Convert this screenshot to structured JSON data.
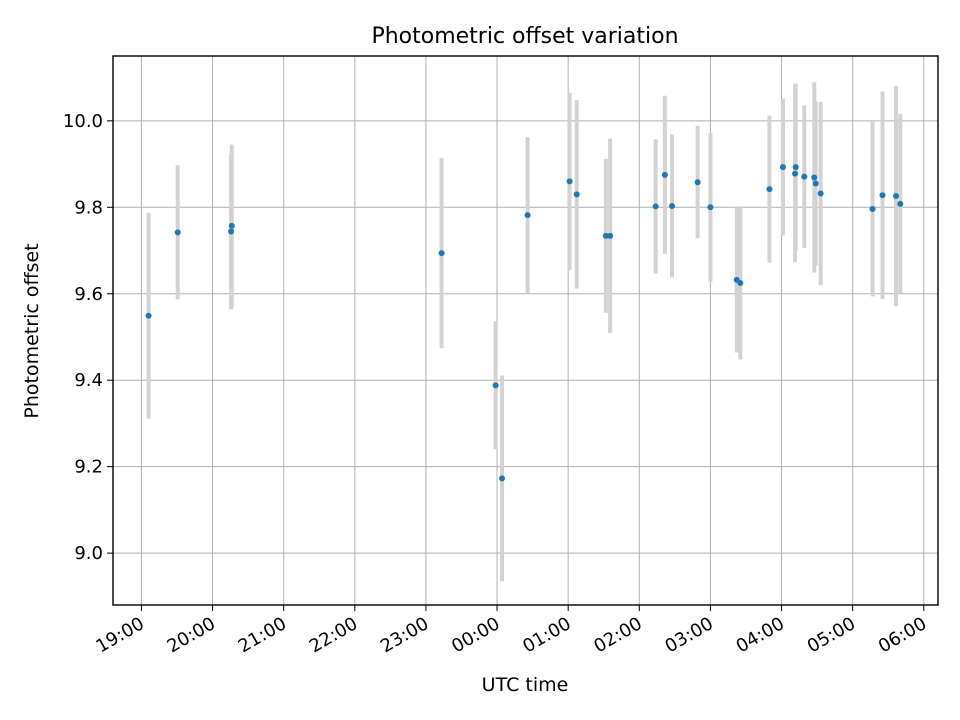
{
  "chart_data": {
    "type": "scatter",
    "title": "Photometric offset variation",
    "xlabel": "UTC time",
    "ylabel": "Photometric offset",
    "x_unit": "hours (UTC, continuous from 19:00 through midnight)",
    "xlim": [
      18.6,
      30.2
    ],
    "ylim": [
      8.88,
      10.15
    ],
    "x_ticks": [
      {
        "value": 19,
        "label": "19:00"
      },
      {
        "value": 20,
        "label": "20:00"
      },
      {
        "value": 21,
        "label": "21:00"
      },
      {
        "value": 22,
        "label": "22:00"
      },
      {
        "value": 23,
        "label": "23:00"
      },
      {
        "value": 24,
        "label": "00:00"
      },
      {
        "value": 25,
        "label": "01:00"
      },
      {
        "value": 26,
        "label": "02:00"
      },
      {
        "value": 27,
        "label": "03:00"
      },
      {
        "value": 28,
        "label": "04:00"
      },
      {
        "value": 29,
        "label": "05:00"
      },
      {
        "value": 30,
        "label": "06:00"
      }
    ],
    "y_ticks": [
      {
        "value": 9.0,
        "label": "9.0"
      },
      {
        "value": 9.2,
        "label": "9.2"
      },
      {
        "value": 9.4,
        "label": "9.4"
      },
      {
        "value": 9.6,
        "label": "9.6"
      },
      {
        "value": 9.8,
        "label": "9.8"
      },
      {
        "value": 10.0,
        "label": "10.0"
      }
    ],
    "grid": true,
    "point_color": "#1f77b4",
    "errorbar_color": "#d3d3d3",
    "points": [
      {
        "x": 19.1,
        "y": 9.549,
        "err": 0.238
      },
      {
        "x": 19.51,
        "y": 9.742,
        "err": 0.155
      },
      {
        "x": 20.26,
        "y": 9.744,
        "err": 0.18
      },
      {
        "x": 20.27,
        "y": 9.757,
        "err": 0.188
      },
      {
        "x": 23.22,
        "y": 9.694,
        "err": 0.22
      },
      {
        "x": 23.98,
        "y": 9.388,
        "err": 0.148
      },
      {
        "x": 24.07,
        "y": 9.173,
        "err": 0.238
      },
      {
        "x": 24.43,
        "y": 9.782,
        "err": 0.18
      },
      {
        "x": 25.02,
        "y": 9.86,
        "err": 0.205
      },
      {
        "x": 25.12,
        "y": 9.83,
        "err": 0.218
      },
      {
        "x": 25.53,
        "y": 9.734,
        "err": 0.178
      },
      {
        "x": 25.59,
        "y": 9.734,
        "err": 0.225
      },
      {
        "x": 26.23,
        "y": 9.802,
        "err": 0.155
      },
      {
        "x": 26.36,
        "y": 9.875,
        "err": 0.183
      },
      {
        "x": 26.46,
        "y": 9.803,
        "err": 0.165
      },
      {
        "x": 26.82,
        "y": 9.858,
        "err": 0.13
      },
      {
        "x": 27.0,
        "y": 9.8,
        "err": 0.172
      },
      {
        "x": 27.37,
        "y": 9.632,
        "err": 0.168
      },
      {
        "x": 27.42,
        "y": 9.625,
        "err": 0.177
      },
      {
        "x": 27.83,
        "y": 9.842,
        "err": 0.17
      },
      {
        "x": 28.02,
        "y": 9.893,
        "err": 0.158
      },
      {
        "x": 28.19,
        "y": 9.878,
        "err": 0.205
      },
      {
        "x": 28.2,
        "y": 9.893,
        "err": 0.193
      },
      {
        "x": 28.32,
        "y": 9.871,
        "err": 0.165
      },
      {
        "x": 28.46,
        "y": 9.869,
        "err": 0.22
      },
      {
        "x": 28.48,
        "y": 9.855,
        "err": 0.19
      },
      {
        "x": 28.55,
        "y": 9.832,
        "err": 0.212
      },
      {
        "x": 29.28,
        "y": 9.796,
        "err": 0.202
      },
      {
        "x": 29.42,
        "y": 9.828,
        "err": 0.24
      },
      {
        "x": 29.61,
        "y": 9.826,
        "err": 0.255
      },
      {
        "x": 29.67,
        "y": 9.808,
        "err": 0.208
      }
    ]
  }
}
